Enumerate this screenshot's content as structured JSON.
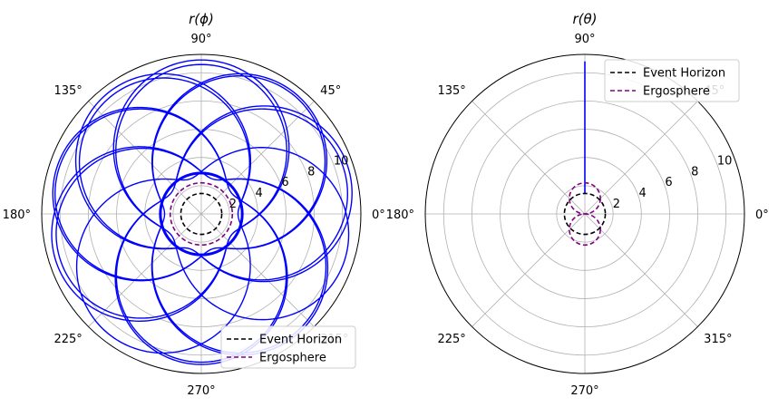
{
  "chart_data": [
    {
      "type": "polar",
      "title": "r(ϕ)",
      "rticks": [
        2,
        4,
        6,
        8,
        10
      ],
      "rmax": 11.3,
      "angle_ticks": [
        "0°",
        "45°",
        "90°",
        "135°",
        "180°",
        "225°",
        "270°",
        "315°"
      ],
      "grid": true,
      "legend": {
        "placement": "lower-right",
        "entries": [
          "Event Horizon",
          "Ergosphere"
        ]
      },
      "series": [
        {
          "name": "",
          "style": "solid",
          "color": "#0000ff",
          "trajectory": {
            "perihelion": 2.6,
            "aphelion": 10.5,
            "angular_advance_deg": 252,
            "periods": 18,
            "band_spread": 0.45
          }
        },
        {
          "name": "Event Horizon",
          "style": "dashed",
          "color": "#000000",
          "r": 1.45
        },
        {
          "name": "Ergosphere",
          "style": "dashed",
          "color": "#800080",
          "r": 2.2
        }
      ]
    },
    {
      "type": "polar",
      "title": "r(θ)",
      "rticks": [
        2,
        4,
        6,
        8,
        10
      ],
      "rmax": 11.3,
      "angle_ticks": [
        "0°",
        "45°",
        "90°",
        "135°",
        "180°",
        "225°",
        "270°",
        "315°"
      ],
      "grid": true,
      "legend": {
        "placement": "upper-right",
        "entries": [
          "Event Horizon",
          "Ergosphere"
        ]
      },
      "series": [
        {
          "name": "",
          "style": "solid",
          "color": "#0000ff",
          "theta_deg": 90,
          "r_range": [
            1.45,
            10.8
          ]
        },
        {
          "name": "Event Horizon",
          "style": "dashed",
          "color": "#000000",
          "r": 1.45
        },
        {
          "name": "Ergosphere",
          "style": "dashed",
          "color": "#800080",
          "lobes": {
            "lobe_radius": 1.1,
            "offset": 1.1
          }
        }
      ]
    }
  ]
}
